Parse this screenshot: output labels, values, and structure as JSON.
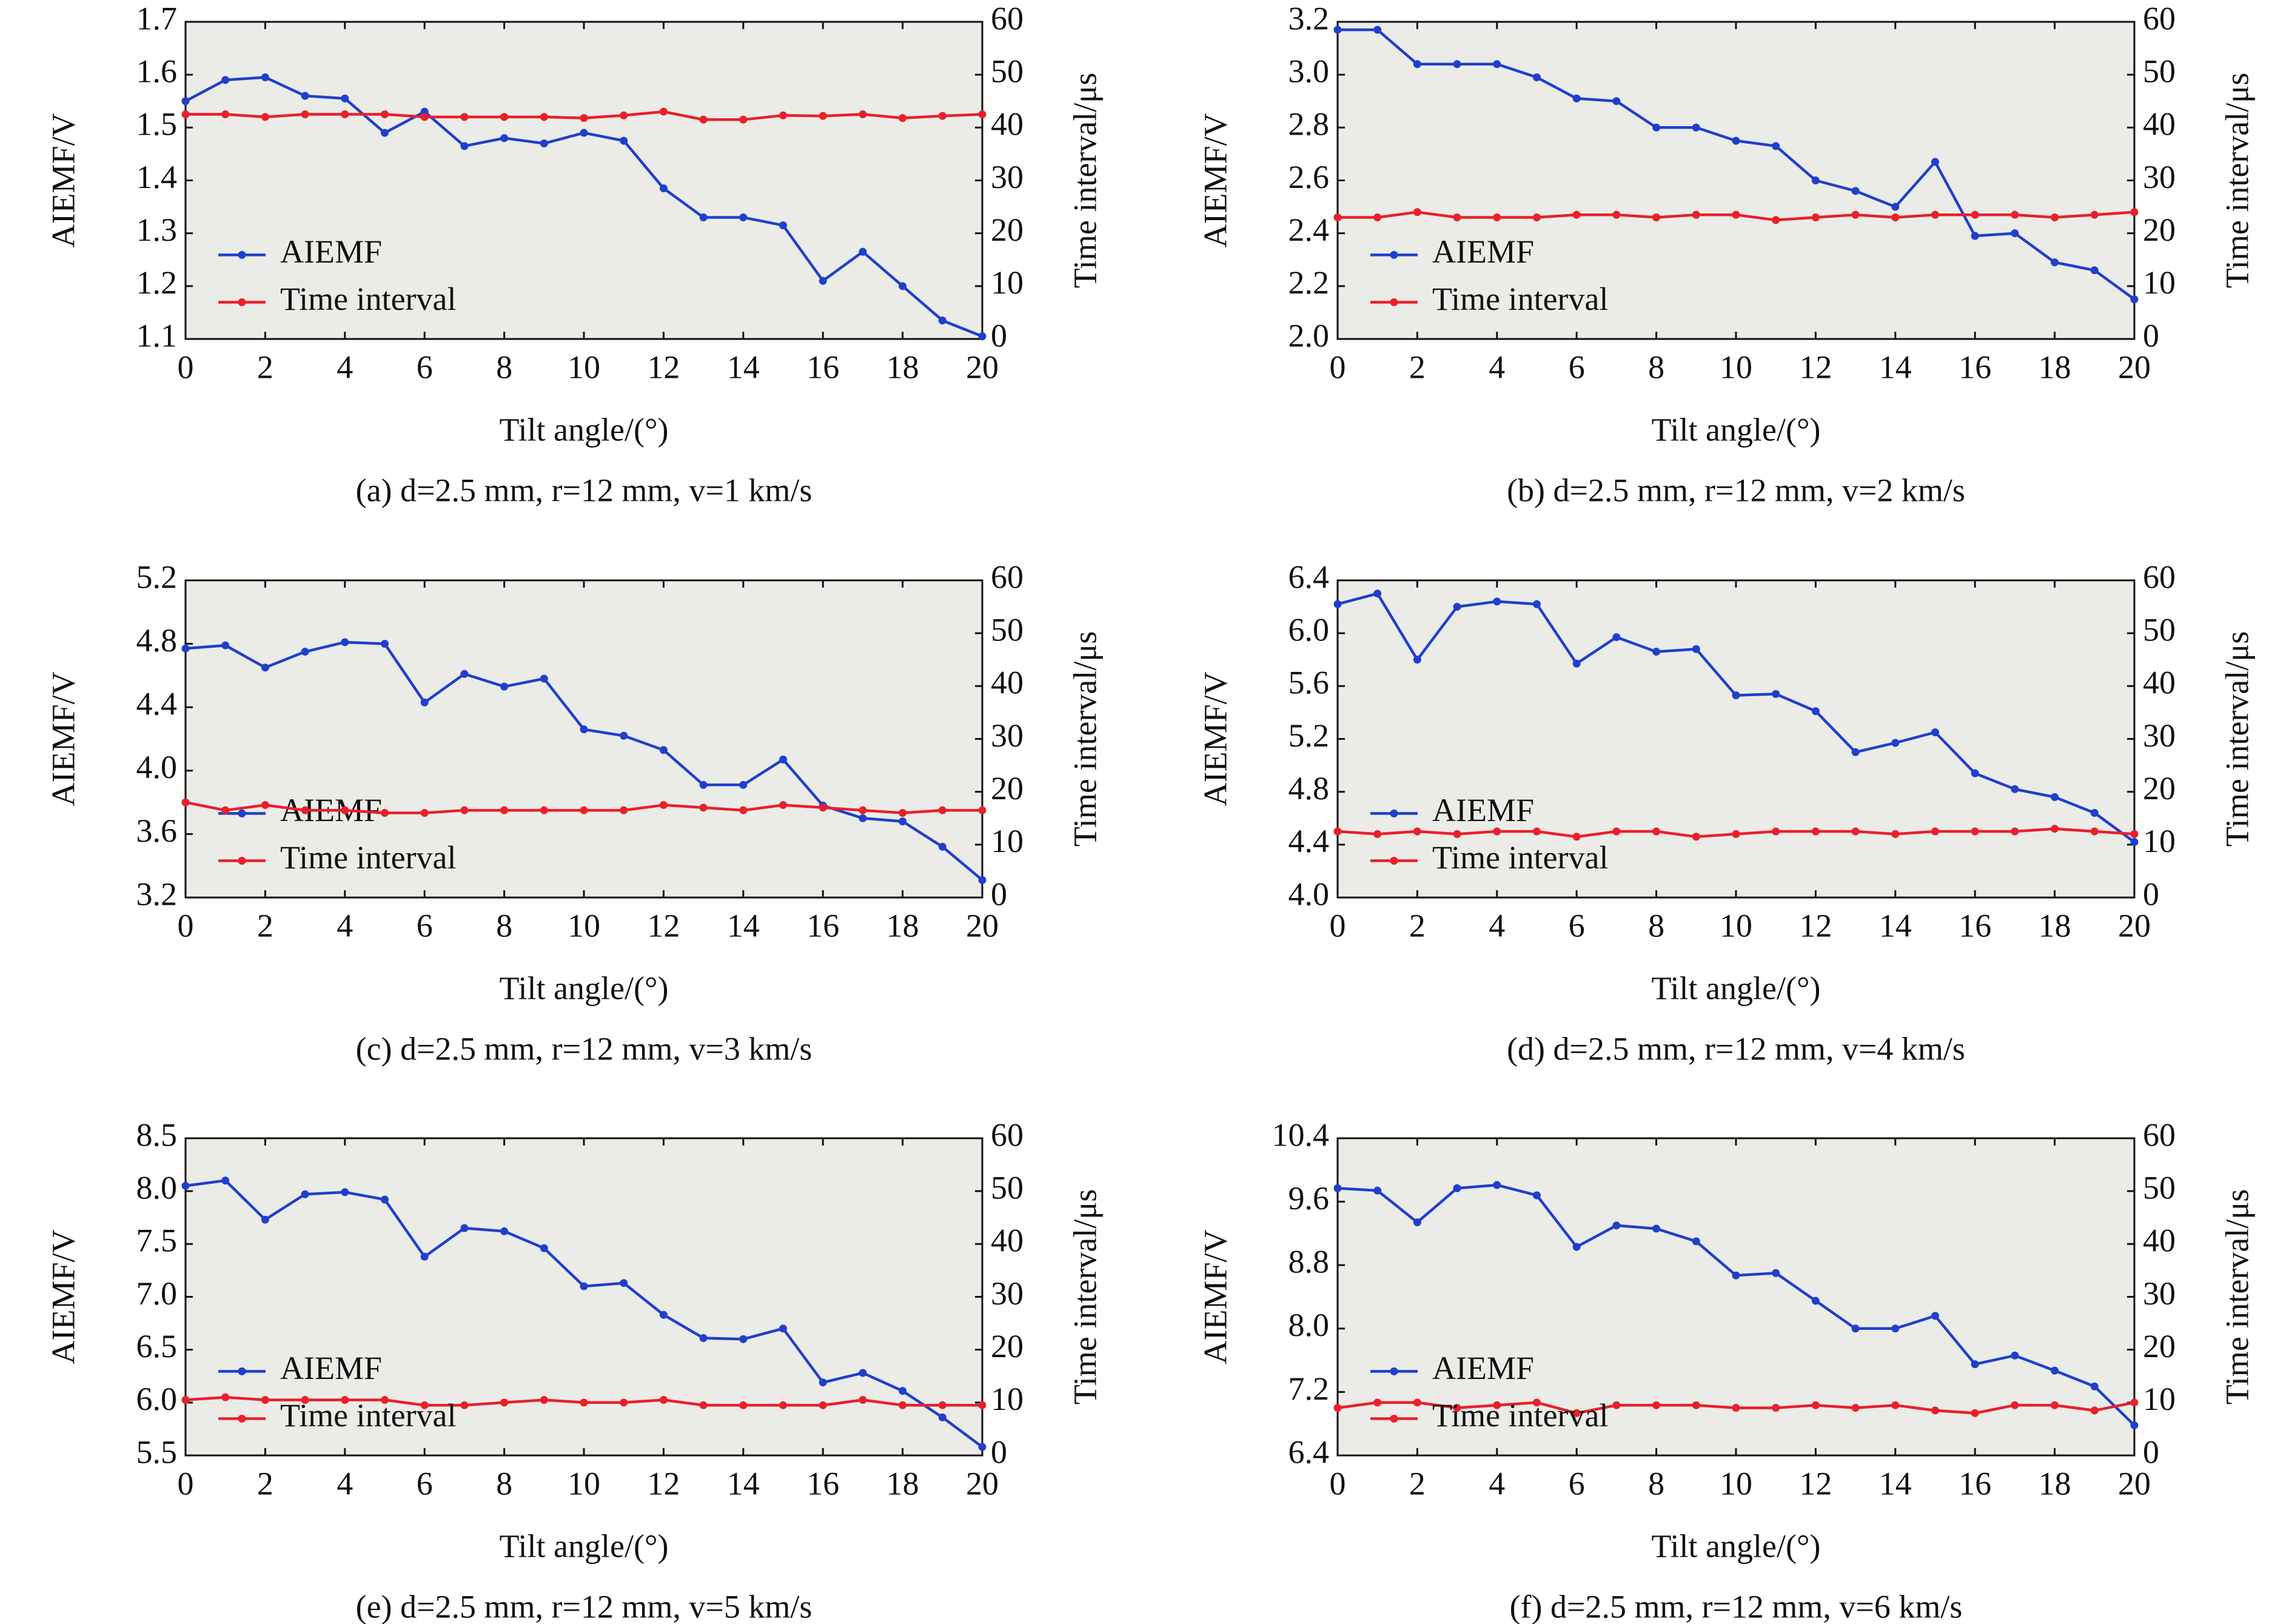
{
  "chart_data": [
    {
      "type": "line",
      "caption": "(a) d=2.5 mm, r=12 mm, v=1 km/s",
      "x_label": "Tilt angle/(°)",
      "y_label": "AIEMF/V",
      "y2_label": "Time interval/μs",
      "x": [
        0,
        1,
        2,
        3,
        4,
        5,
        6,
        7,
        8,
        9,
        10,
        11,
        12,
        13,
        14,
        15,
        16,
        17,
        18,
        19,
        20
      ],
      "xlim": [
        0,
        20
      ],
      "xticks": [
        0,
        2,
        4,
        6,
        8,
        10,
        12,
        14,
        16,
        18,
        20
      ],
      "ylim": [
        1.1,
        1.7
      ],
      "yticks": [
        1.1,
        1.2,
        1.3,
        1.4,
        1.5,
        1.6,
        1.7
      ],
      "y2lim": [
        0,
        60
      ],
      "y2ticks": [
        0,
        10,
        20,
        30,
        40,
        50,
        60
      ],
      "legend": "lower left",
      "series": [
        {
          "name": "AIEMF",
          "color": "#1f3fcc",
          "values": [
            1.55,
            1.59,
            1.595,
            1.56,
            1.555,
            1.49,
            1.53,
            1.465,
            1.48,
            1.47,
            1.49,
            1.475,
            1.385,
            1.33,
            1.33,
            1.315,
            1.21,
            1.265,
            1.2,
            1.135,
            1.105
          ]
        },
        {
          "name": "Time interval",
          "color": "#e8202a",
          "axis": "y2",
          "values": [
            42.5,
            42.5,
            42,
            42.5,
            42.5,
            42.5,
            42,
            42,
            42,
            42,
            41.8,
            42.3,
            43,
            41.5,
            41.5,
            42.3,
            42.2,
            42.5,
            41.8,
            42.2,
            42.5
          ]
        }
      ]
    },
    {
      "type": "line",
      "caption": "(b) d=2.5 mm, r=12 mm, v=2 km/s",
      "x_label": "Tilt angle/(°)",
      "y_label": "AIEMF/V",
      "y2_label": "Time interval/μs",
      "x": [
        0,
        1,
        2,
        3,
        4,
        5,
        6,
        7,
        8,
        9,
        10,
        11,
        12,
        13,
        14,
        15,
        16,
        17,
        18,
        19,
        20
      ],
      "xlim": [
        0,
        20
      ],
      "xticks": [
        0,
        2,
        4,
        6,
        8,
        10,
        12,
        14,
        16,
        18,
        20
      ],
      "ylim": [
        2.0,
        3.2
      ],
      "yticks": [
        {
          "value": 2.0,
          "label": "2.0"
        },
        2.2,
        2.4,
        2.6,
        2.8,
        {
          "value": 3.0,
          "label": "3.0"
        },
        3.2
      ],
      "y2lim": [
        0,
        60
      ],
      "y2ticks": [
        0,
        10,
        20,
        30,
        40,
        50,
        60
      ],
      "legend": "lower left",
      "series": [
        {
          "name": "AIEMF",
          "color": "#1f3fcc",
          "values": [
            3.17,
            3.17,
            3.04,
            3.04,
            3.04,
            2.99,
            2.91,
            2.9,
            2.8,
            2.8,
            2.75,
            2.73,
            2.6,
            2.56,
            2.5,
            2.67,
            2.39,
            2.4,
            2.29,
            2.26,
            2.15
          ]
        },
        {
          "name": "Time interval",
          "color": "#e8202a",
          "axis": "y2",
          "values": [
            23,
            23,
            24,
            23,
            23,
            23,
            23.5,
            23.5,
            23,
            23.5,
            23.5,
            22.5,
            23,
            23.5,
            23,
            23.5,
            23.5,
            23.5,
            23,
            23.5,
            24
          ]
        }
      ]
    },
    {
      "type": "line",
      "caption": "(c) d=2.5 mm, r=12 mm, v=3 km/s",
      "x_label": "Tilt angle/(°)",
      "y_label": "AIEMF/V",
      "y2_label": "Time interval/μs",
      "x": [
        0,
        1,
        2,
        3,
        4,
        5,
        6,
        7,
        8,
        9,
        10,
        11,
        12,
        13,
        14,
        15,
        16,
        17,
        18,
        19,
        20
      ],
      "xlim": [
        0,
        20
      ],
      "xticks": [
        0,
        2,
        4,
        6,
        8,
        10,
        12,
        14,
        16,
        18,
        20
      ],
      "ylim": [
        3.2,
        5.2
      ],
      "yticks": [
        3.2,
        3.6,
        {
          "value": 4.0,
          "label": "4.0"
        },
        4.4,
        4.8,
        5.2
      ],
      "y2lim": [
        0,
        60
      ],
      "y2ticks": [
        0,
        10,
        20,
        30,
        40,
        50,
        60
      ],
      "legend": "lower left",
      "series": [
        {
          "name": "AIEMF",
          "color": "#1f3fcc",
          "values": [
            4.77,
            4.79,
            4.65,
            4.75,
            4.81,
            4.8,
            4.43,
            4.61,
            4.53,
            4.58,
            4.26,
            4.22,
            4.13,
            3.91,
            3.91,
            4.07,
            3.78,
            3.7,
            3.68,
            3.52,
            3.31
          ]
        },
        {
          "name": "Time interval",
          "color": "#e8202a",
          "axis": "y2",
          "values": [
            18,
            16.5,
            17.5,
            16.5,
            16.5,
            16,
            16,
            16.5,
            16.5,
            16.5,
            16.5,
            16.5,
            17.5,
            17,
            16.5,
            17.5,
            17,
            16.5,
            16,
            16.5,
            16.5
          ]
        }
      ]
    },
    {
      "type": "line",
      "caption": "(d) d=2.5 mm, r=12 mm, v=4 km/s",
      "x_label": "Tilt angle/(°)",
      "y_label": "AIEMF/V",
      "y2_label": "Time interval/μs",
      "x": [
        0,
        1,
        2,
        3,
        4,
        5,
        6,
        7,
        8,
        9,
        10,
        11,
        12,
        13,
        14,
        15,
        16,
        17,
        18,
        19,
        20
      ],
      "xlim": [
        0,
        20
      ],
      "xticks": [
        0,
        2,
        4,
        6,
        8,
        10,
        12,
        14,
        16,
        18,
        20
      ],
      "ylim": [
        4.0,
        6.4
      ],
      "yticks": [
        {
          "value": 4.0,
          "label": "4.0"
        },
        4.4,
        4.8,
        5.2,
        5.6,
        {
          "value": 6.0,
          "label": "6.0"
        },
        6.4
      ],
      "y2lim": [
        0,
        60
      ],
      "y2ticks": [
        0,
        10,
        20,
        30,
        40,
        50,
        60
      ],
      "legend": "lower left",
      "series": [
        {
          "name": "AIEMF",
          "color": "#1f3fcc",
          "values": [
            6.22,
            6.3,
            5.8,
            6.2,
            6.24,
            6.22,
            5.77,
            5.97,
            5.86,
            5.88,
            5.53,
            5.54,
            5.41,
            5.1,
            5.17,
            5.25,
            4.94,
            4.82,
            4.76,
            4.64,
            4.42
          ]
        },
        {
          "name": "Time interval",
          "color": "#e8202a",
          "axis": "y2",
          "values": [
            12.5,
            12,
            12.5,
            12,
            12.5,
            12.5,
            11.5,
            12.5,
            12.5,
            11.5,
            12,
            12.5,
            12.5,
            12.5,
            12,
            12.5,
            12.5,
            12.5,
            13,
            12.5,
            12
          ]
        }
      ]
    },
    {
      "type": "line",
      "caption": "(e) d=2.5 mm, r=12 mm, v=5 km/s",
      "x_label": "Tilt angle/(°)",
      "y_label": "AIEMF/V",
      "y2_label": "Time interval/μs",
      "x": [
        0,
        1,
        2,
        3,
        4,
        5,
        6,
        7,
        8,
        9,
        10,
        11,
        12,
        13,
        14,
        15,
        16,
        17,
        18,
        19,
        20
      ],
      "xlim": [
        0,
        20
      ],
      "xticks": [
        0,
        2,
        4,
        6,
        8,
        10,
        12,
        14,
        16,
        18,
        20
      ],
      "ylim": [
        5.5,
        8.5
      ],
      "yticks": [
        5.5,
        {
          "value": 6.0,
          "label": "6.0"
        },
        6.5,
        {
          "value": 7.0,
          "label": "7.0"
        },
        7.5,
        {
          "value": 8.0,
          "label": "8.0"
        },
        8.5
      ],
      "y2lim": [
        0,
        60
      ],
      "y2ticks": [
        0,
        10,
        20,
        30,
        40,
        50,
        60
      ],
      "legend": "lower left",
      "series": [
        {
          "name": "AIEMF",
          "color": "#1f3fcc",
          "values": [
            8.05,
            8.1,
            7.73,
            7.97,
            7.99,
            7.92,
            7.38,
            7.65,
            7.62,
            7.46,
            7.1,
            7.13,
            6.83,
            6.61,
            6.6,
            6.7,
            6.19,
            6.28,
            6.11,
            5.86,
            5.58
          ]
        },
        {
          "name": "Time interval",
          "color": "#e8202a",
          "axis": "y2",
          "values": [
            10.5,
            11,
            10.5,
            10.5,
            10.5,
            10.5,
            9.5,
            9.5,
            10,
            10.5,
            10,
            10,
            10.5,
            9.5,
            9.5,
            9.5,
            9.5,
            10.5,
            9.5,
            9.5,
            9.5
          ]
        }
      ]
    },
    {
      "type": "line",
      "caption": "(f) d=2.5 mm, r=12 mm, v=6 km/s",
      "x_label": "Tilt angle/(°)",
      "y_label": "AIEMF/V",
      "y2_label": "Time interval/μs",
      "x": [
        0,
        1,
        2,
        3,
        4,
        5,
        6,
        7,
        8,
        9,
        10,
        11,
        12,
        13,
        14,
        15,
        16,
        17,
        18,
        19,
        20
      ],
      "xlim": [
        0,
        20
      ],
      "xticks": [
        0,
        2,
        4,
        6,
        8,
        10,
        12,
        14,
        16,
        18,
        20
      ],
      "ylim": [
        6.4,
        10.4
      ],
      "yticks": [
        6.4,
        7.2,
        {
          "value": 8.0,
          "label": "8.0"
        },
        8.8,
        9.6,
        10.4
      ],
      "y2lim": [
        0,
        60
      ],
      "y2ticks": [
        0,
        10,
        20,
        30,
        40,
        50,
        60
      ],
      "legend": "lower left",
      "series": [
        {
          "name": "AIEMF",
          "color": "#1f3fcc",
          "values": [
            9.77,
            9.74,
            9.34,
            9.77,
            9.81,
            9.68,
            9.03,
            9.3,
            9.26,
            9.1,
            8.67,
            8.7,
            8.35,
            8.0,
            8.0,
            8.16,
            7.55,
            7.66,
            7.47,
            7.27,
            6.78
          ]
        },
        {
          "name": "Time interval",
          "color": "#e8202a",
          "axis": "y2",
          "values": [
            9,
            10,
            10,
            9,
            9.5,
            10,
            8,
            9.5,
            9.5,
            9.5,
            9,
            9,
            9.5,
            9,
            9.5,
            8.5,
            8,
            9.5,
            9.5,
            8.5,
            10
          ]
        }
      ]
    }
  ]
}
